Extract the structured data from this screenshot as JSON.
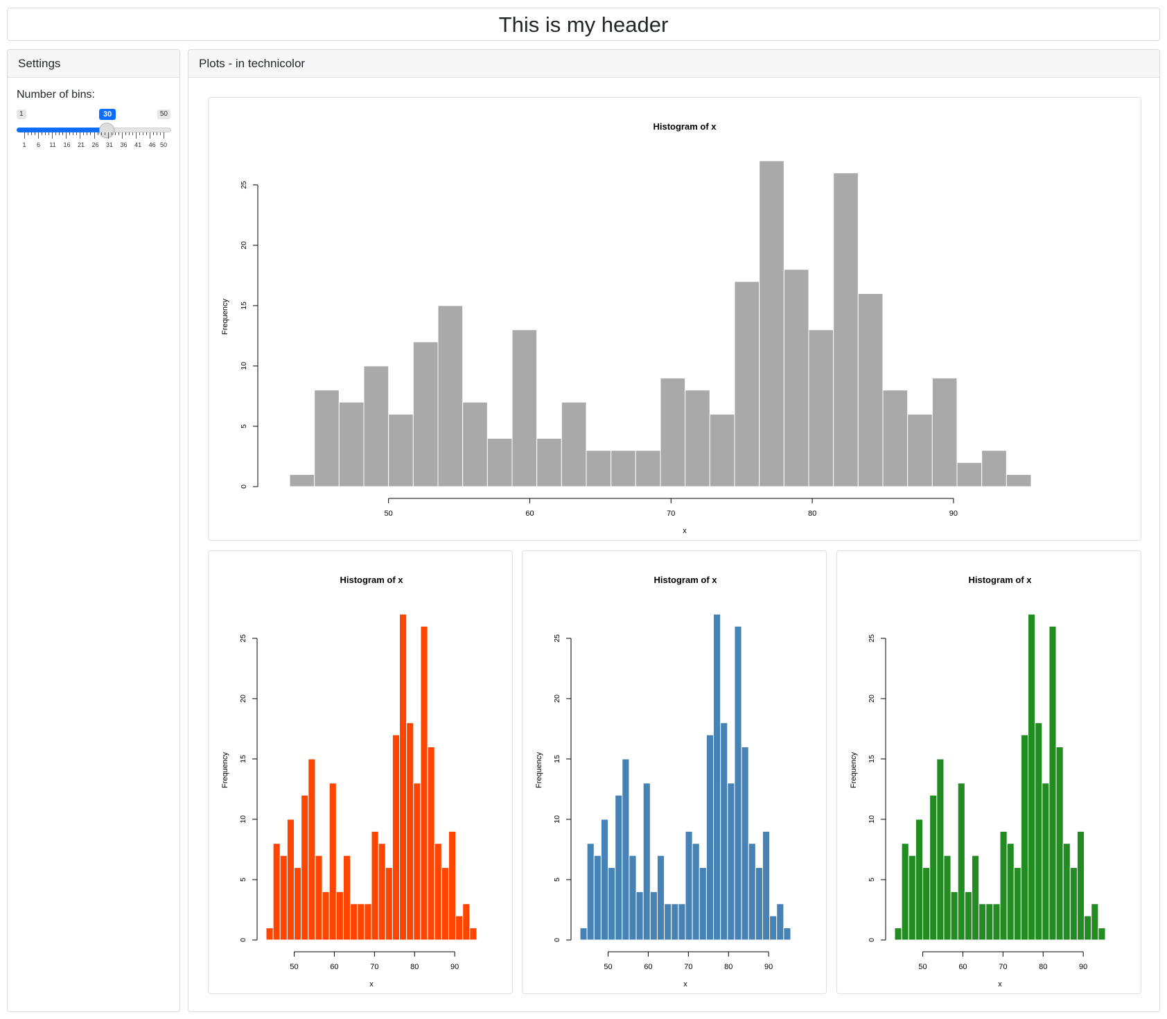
{
  "header": {
    "title": "This is my header"
  },
  "sidebar": {
    "title": "Settings",
    "slider": {
      "label": "Number of bins:",
      "min": 1,
      "max": 50,
      "value": 30,
      "min_label": "1",
      "max_label": "50",
      "value_label": "30",
      "grid_labels": [
        "1",
        "6",
        "11",
        "16",
        "21",
        "26",
        "31",
        "36",
        "41",
        "46",
        "50"
      ]
    }
  },
  "main": {
    "title": "Plots - in technicolor"
  },
  "chart_data": [
    {
      "id": "gray",
      "type": "bar",
      "color": "#a9a9a9",
      "title": "Histogram of x",
      "xlabel": "x",
      "ylabel": "Frequency",
      "bin_start": 43,
      "bin_width": 1.75,
      "values": [
        1,
        8,
        7,
        10,
        6,
        12,
        15,
        7,
        4,
        13,
        4,
        7,
        3,
        3,
        3,
        9,
        8,
        6,
        17,
        27,
        18,
        13,
        26,
        16,
        8,
        6,
        9,
        2,
        3,
        1
      ],
      "xticks": [
        50,
        60,
        70,
        80,
        90
      ],
      "yticks": [
        0,
        5,
        10,
        15,
        20,
        25
      ],
      "ylim": [
        0,
        27
      ]
    },
    {
      "id": "red",
      "type": "bar",
      "color": "#ff4500",
      "title": "Histogram of x",
      "xlabel": "x",
      "ylabel": "Frequency",
      "bin_start": 43,
      "bin_width": 1.75,
      "values": [
        1,
        8,
        7,
        10,
        6,
        12,
        15,
        7,
        4,
        13,
        4,
        7,
        3,
        3,
        3,
        9,
        8,
        6,
        17,
        27,
        18,
        13,
        26,
        16,
        8,
        6,
        9,
        2,
        3,
        1
      ],
      "xticks": [
        50,
        60,
        70,
        80,
        90
      ],
      "yticks": [
        0,
        5,
        10,
        15,
        20,
        25
      ],
      "ylim": [
        0,
        27
      ]
    },
    {
      "id": "blue",
      "type": "bar",
      "color": "#4682b4",
      "title": "Histogram of x",
      "xlabel": "x",
      "ylabel": "Frequency",
      "bin_start": 43,
      "bin_width": 1.75,
      "values": [
        1,
        8,
        7,
        10,
        6,
        12,
        15,
        7,
        4,
        13,
        4,
        7,
        3,
        3,
        3,
        9,
        8,
        6,
        17,
        27,
        18,
        13,
        26,
        16,
        8,
        6,
        9,
        2,
        3,
        1
      ],
      "xticks": [
        50,
        60,
        70,
        80,
        90
      ],
      "yticks": [
        0,
        5,
        10,
        15,
        20,
        25
      ],
      "ylim": [
        0,
        27
      ]
    },
    {
      "id": "green",
      "type": "bar",
      "color": "#228b22",
      "title": "Histogram of x",
      "xlabel": "x",
      "ylabel": "Frequency",
      "bin_start": 43,
      "bin_width": 1.75,
      "values": [
        1,
        8,
        7,
        10,
        6,
        12,
        15,
        7,
        4,
        13,
        4,
        7,
        3,
        3,
        3,
        9,
        8,
        6,
        17,
        27,
        18,
        13,
        26,
        16,
        8,
        6,
        9,
        2,
        3,
        1
      ],
      "xticks": [
        50,
        60,
        70,
        80,
        90
      ],
      "yticks": [
        0,
        5,
        10,
        15,
        20,
        25
      ],
      "ylim": [
        0,
        27
      ]
    }
  ]
}
